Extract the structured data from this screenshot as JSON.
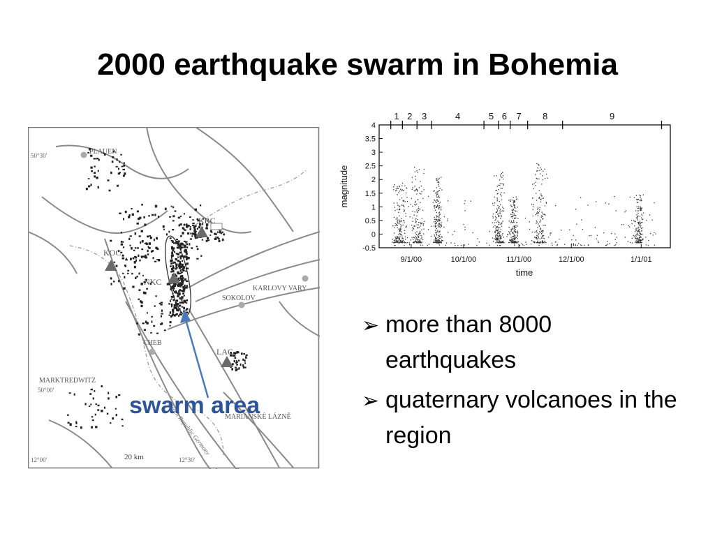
{
  "slide": {
    "title": "2000 earthquake swarm in Bohemia",
    "bullets": [
      "more than 8000 earthquakes",
      "quaternary volcanoes in the region"
    ],
    "bullet_icon": "arrow-bullet",
    "swarm_label": "swarm area",
    "accent_color": "#2e5597"
  },
  "map": {
    "places": [
      "PLAUEN",
      "KARLOVY VARY",
      "SOKOLOV",
      "CHEB",
      "MARKTREDWITZ",
      "MARIÁNSKÉ LÁZNĚ"
    ],
    "stations": [
      "KRC",
      "KOC",
      "NKC",
      "LAC"
    ],
    "coordinate_labels": [
      "50°30'",
      "50°00'",
      "12°00'",
      "12°30'"
    ],
    "scale_label": "20 km",
    "border_label": "Czech Republic Germany"
  },
  "chart_data": {
    "type": "scatter",
    "xlabel": "time",
    "ylabel": "magnitude",
    "ylim": [
      -0.5,
      4
    ],
    "y_ticks": [
      "-0.5",
      "0",
      "0.5",
      "1",
      "1.5",
      "2",
      "2.5",
      "3",
      "3.5",
      "4"
    ],
    "x_ticks": [
      "9/1/00",
      "10/1/00",
      "11/1/00",
      "12/1/00",
      "1/1/01"
    ],
    "phases": [
      "1",
      "2",
      "3",
      "4",
      "5",
      "6",
      "7",
      "8",
      "9"
    ],
    "grid": false
  }
}
